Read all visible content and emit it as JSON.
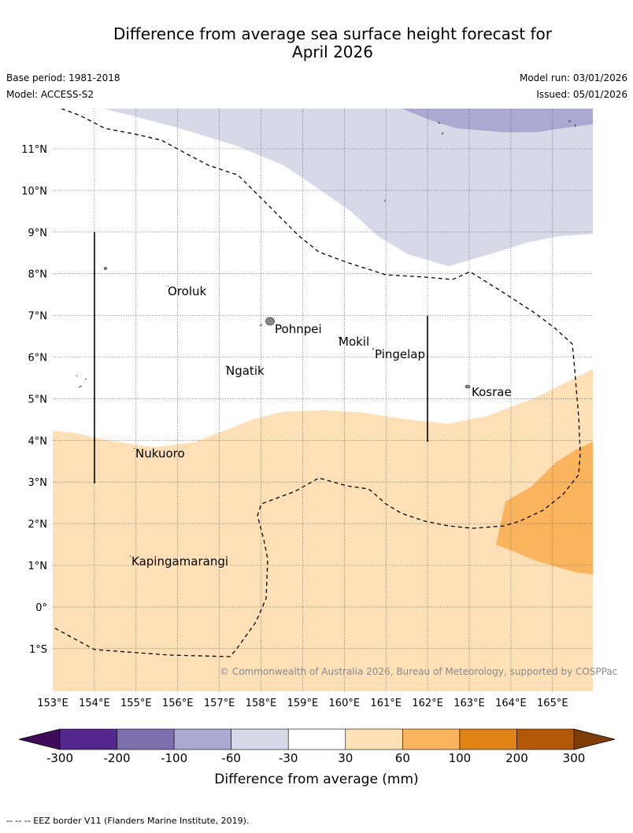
{
  "title_line1": "Difference from average sea surface height forecast for",
  "title_line2": "April 2026",
  "base_period": "Base period: 1981-2018",
  "model": "Model: ACCESS-S2",
  "model_run": "Model run: 03/01/2026",
  "issued": "Issued: 05/01/2026",
  "map": {
    "lat_labels": [
      "11°N",
      "10°N",
      "9°N",
      "8°N",
      "7°N",
      "6°N",
      "5°N",
      "4°N",
      "3°N",
      "2°N",
      "1°N",
      "0°",
      "1°S"
    ],
    "lon_labels": [
      "153°E",
      "154°E",
      "155°E",
      "156°E",
      "157°E",
      "158°E",
      "159°E",
      "160°E",
      "161°E",
      "162°E",
      "163°E",
      "164°E",
      "165°E"
    ],
    "places": [
      "Oroluk",
      "Pohnpei",
      "Mokil",
      "Pingelap",
      "Ngatik",
      "Kosrae",
      "Nukuoro",
      "Kapingamarangi"
    ],
    "copyright": "© Commonwealth of Australia 2026, Bureau of Meteorology, supported by COSPPac"
  },
  "legend": {
    "ticks": [
      "-300",
      "-200",
      "-100",
      "-60",
      "-30",
      "30",
      "60",
      "100",
      "200",
      "300"
    ],
    "title": "Difference from average (mm)",
    "colors": {
      "below_min": "#3f0a5a",
      "b1": "#54278f",
      "b2": "#7b6fad",
      "b3": "#ada8d1",
      "b4": "#d8d8e9",
      "b5": "#ffffff",
      "b6": "#fde0b6",
      "b7": "#fbb45e",
      "b8": "#e08214",
      "b9": "#b35807",
      "above_max": "#7f3b08"
    }
  },
  "footnote": "--  --  -- EEZ border V11 (Flanders Marine Institute, 2019)."
}
